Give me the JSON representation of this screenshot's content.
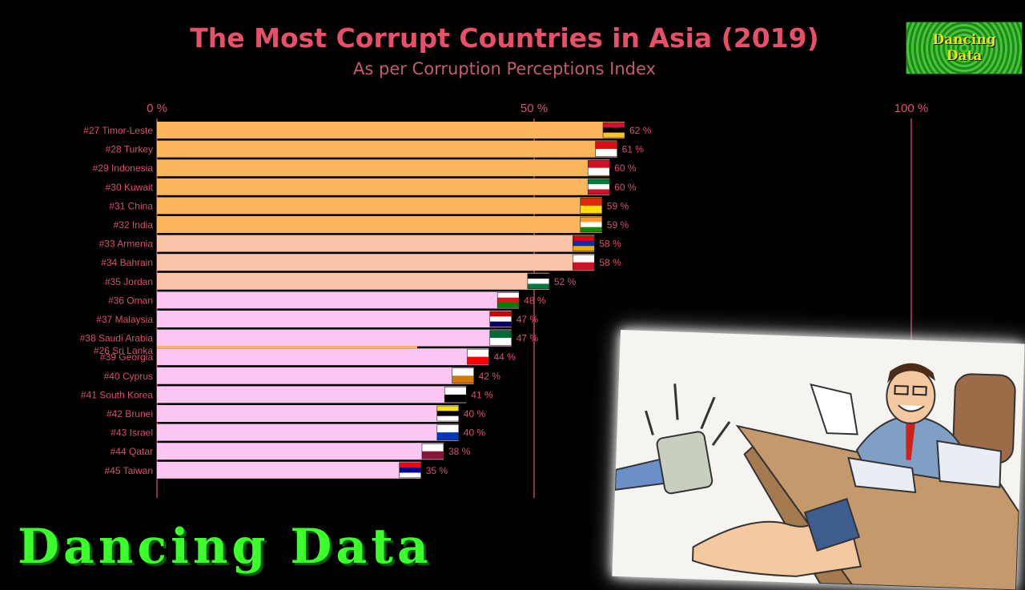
{
  "header": {
    "title": "The Most Corrupt Countries in Asia (2019)",
    "subtitle": "As per Corruption Perceptions Index"
  },
  "logo": {
    "line1": "Dancing",
    "line2": "Data"
  },
  "banner": {
    "text": "Dancing Data"
  },
  "colors": {
    "orange": "#fbb55a",
    "salmon": "#f9c3a8",
    "pink": "#fcc6f2",
    "label": "#d8506a",
    "gridline": "#d8506a"
  },
  "chart_data": {
    "type": "bar",
    "orientation": "horizontal",
    "title": "The Most Corrupt Countries in Asia (2019)",
    "subtitle": "As per Corruption Perceptions Index",
    "xlim": [
      0,
      100
    ],
    "xticks": [
      {
        "value": 0,
        "label": "0 %"
      },
      {
        "value": 50,
        "label": "50 %"
      },
      {
        "value": 100,
        "label": "100 %"
      }
    ],
    "categories": [
      "#27 Timor-Leste",
      "#28 Turkey",
      "#29 Indonesia",
      "#30 Kuwait",
      "#31 China",
      "#32 India",
      "#33 Armenia",
      "#34 Bahrain",
      "#35 Jordan",
      "#36 Oman",
      "#37 Malaysia",
      "#38 Saudi Arabia",
      "#39 Georgia",
      "#40 Cyprus",
      "#41 South Korea",
      "#42 Brunei",
      "#43 Israel",
      "#44 Qatar",
      "#45 Taiwan"
    ],
    "values": [
      62,
      61,
      60,
      60,
      59,
      59,
      58,
      58,
      52,
      48,
      47,
      47,
      44,
      42,
      41,
      40,
      40,
      38,
      35
    ],
    "value_labels": [
      "62 %",
      "61 %",
      "60 %",
      "60 %",
      "59 %",
      "59 %",
      "58 %",
      "58 %",
      "52 %",
      "48 %",
      "47 %",
      "47 %",
      "44 %",
      "42 %",
      "41 %",
      "40 %",
      "40 %",
      "38 %",
      "35 %"
    ],
    "flags": [
      "timor-leste-flag",
      "turkey-flag",
      "indonesia-flag",
      "kuwait-flag",
      "china-flag",
      "india-flag",
      "armenia-flag",
      "bahrain-flag",
      "jordan-flag",
      "oman-flag",
      "malaysia-flag",
      "saudi-arabia-flag",
      "georgia-flag",
      "cyprus-flag",
      "south-korea-flag",
      "brunei-flag",
      "israel-flag",
      "qatar-flag",
      "taiwan-flag"
    ],
    "transition_bar": {
      "label": "#26 Sri Lanka"
    },
    "grid": "vertical lines at ticks"
  },
  "illustration": {
    "name": "bribery-cartoon"
  }
}
